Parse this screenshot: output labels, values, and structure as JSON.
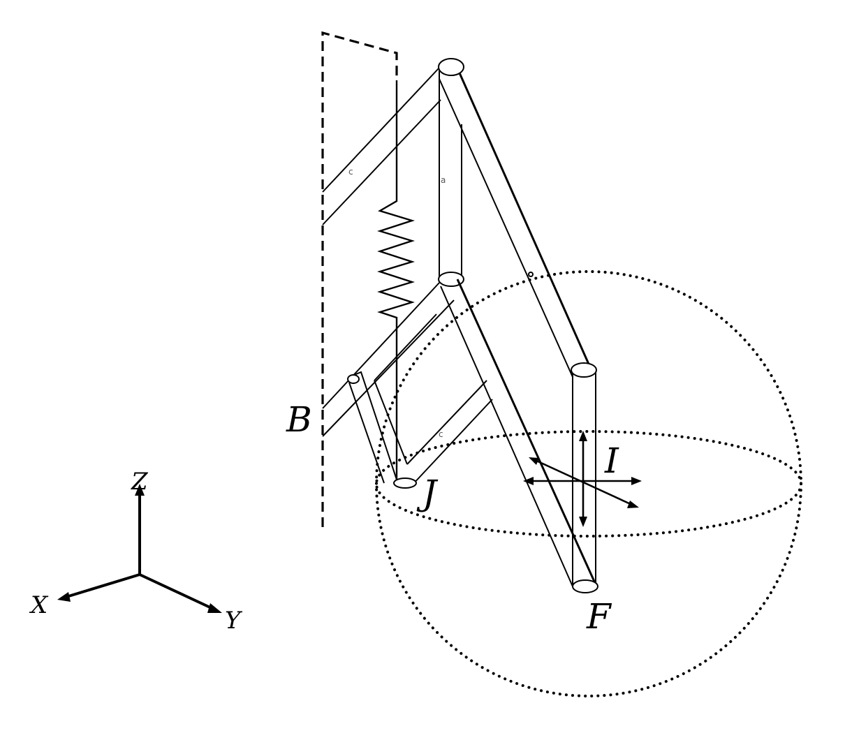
{
  "labels": {
    "B": "B",
    "J": "J",
    "I": "I",
    "F": "F"
  },
  "axes": {
    "z": "Z",
    "x": "X",
    "y": "Y"
  },
  "link_marks": {
    "upper_arm": "c",
    "vertical_link": "a",
    "lower_arm": "c"
  }
}
